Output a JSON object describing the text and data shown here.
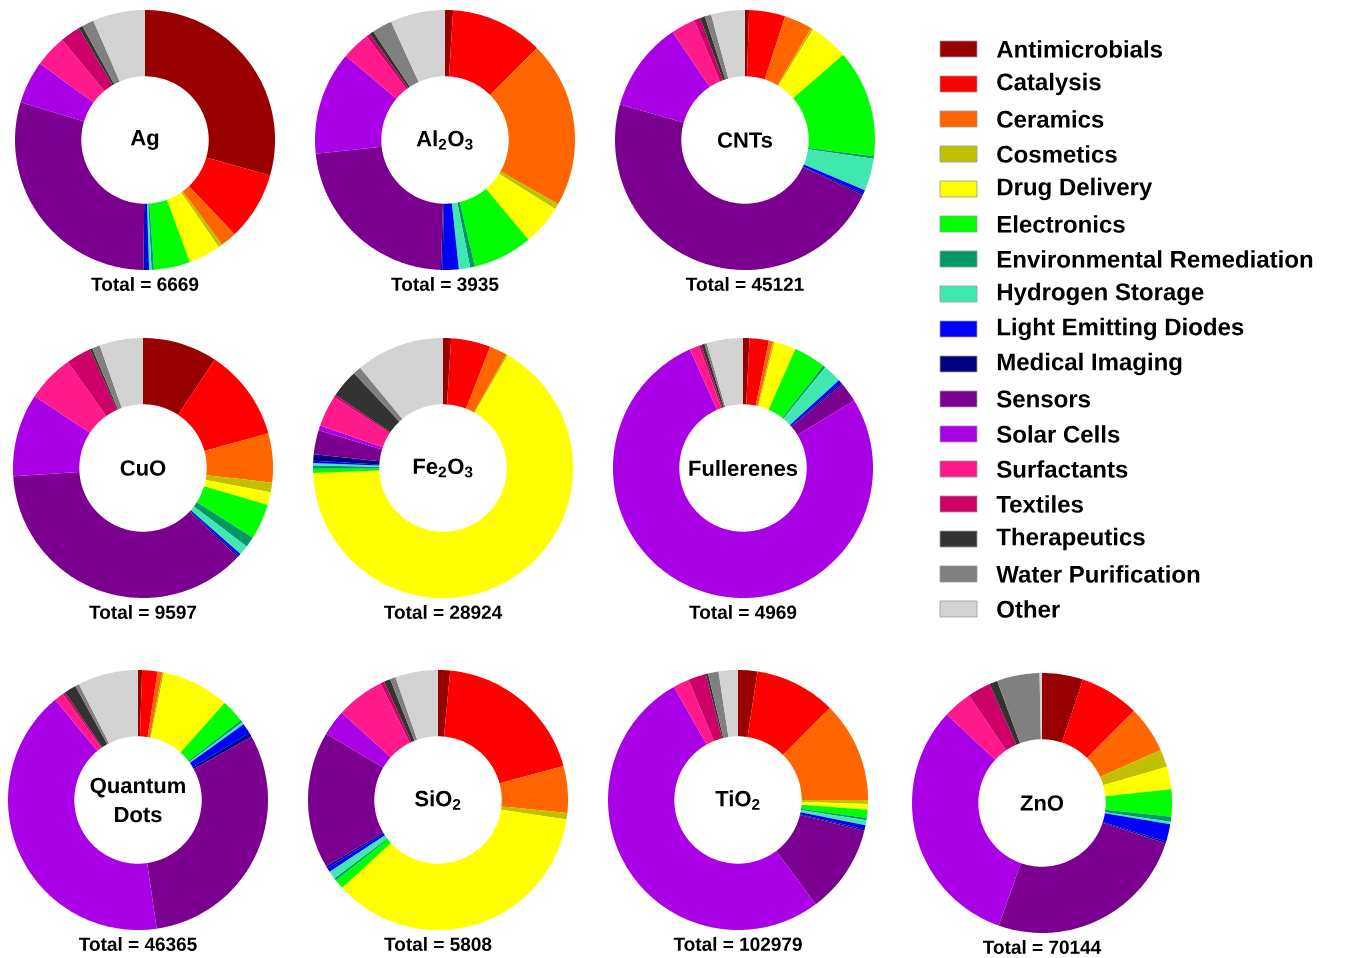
{
  "chart_data": [
    {
      "type": "donut",
      "title": "Ag",
      "annotations": [
        "Total = 6669"
      ],
      "categories": [
        null,
        null,
        null,
        null,
        null,
        null,
        null,
        null,
        null,
        null,
        null,
        null,
        null,
        null,
        null,
        null,
        null
      ],
      "colors": [
        "#990000",
        "#ff0000",
        "#ff6600",
        "#c0c000",
        "#ffff00",
        "#00ff00",
        "#009966",
        "#40e8b0",
        "#0000ff",
        "#000080",
        "#7b0090",
        "#aa00e6",
        "#ff1a8c",
        "#cc0066",
        "#333333",
        "#808080",
        "#d3d3d3"
      ],
      "values": [
        29.4,
        8.5,
        2,
        0.5,
        4,
        4.5,
        0.3,
        0.3,
        0.5,
        0.2,
        29.5,
        5.3,
        4,
        2.5,
        0.5,
        1.5,
        6.5
      ]
    },
    {
      "type": "donut",
      "title": "Al$_{2}$O$_{3}$",
      "annotations": [
        "Total = 3935"
      ],
      "categories": [
        null,
        null,
        null,
        null,
        null,
        null,
        null,
        null,
        null,
        null,
        null,
        null,
        null,
        null,
        null,
        null,
        null
      ],
      "colors": [
        "#990000",
        "#ff0000",
        "#ff6600",
        "#c0c000",
        "#ffff00",
        "#00ff00",
        "#009966",
        "#40e8b0",
        "#0000ff",
        "#000080",
        "#7b0090",
        "#aa00e6",
        "#ff1a8c",
        "#cc0066",
        "#333333",
        "#808080",
        "#d3d3d3"
      ],
      "values": [
        1,
        11.5,
        20.7,
        0.7,
        5,
        7.4,
        0.6,
        1.4,
        2,
        0.2,
        22.8,
        12.9,
        3.5,
        0.5,
        0.5,
        2.5,
        6.8
      ]
    },
    {
      "type": "donut",
      "title": "CNTs",
      "annotations": [
        "Total = 45121"
      ],
      "legend": "right",
      "categories": [
        "Antimicrobials",
        "Catalysis",
        "Ceramics",
        "Cosmetics",
        "Drug Delivery",
        "Electronics",
        "Environmental Remediation",
        "Hydrogen Storage",
        "Light Emitting Diodes",
        "Medical Imaging",
        "Sensors",
        "Solar Cells",
        "Surfactants",
        "Textiles",
        "Therapeutics",
        "Water Purification",
        "Other"
      ],
      "colors": [
        "#990000",
        "#ff0000",
        "#ff6600",
        "#c0c000",
        "#ffff00",
        "#00ff00",
        "#009966",
        "#40e8b0",
        "#0000ff",
        "#000080",
        "#7b0090",
        "#aa00e6",
        "#ff1a8c",
        "#cc0066",
        "#333333",
        "#808080",
        "#d3d3d3"
      ],
      "values": [
        0.5,
        4.5,
        3.5,
        0.3,
        4.8,
        13.4,
        0.3,
        4,
        0.5,
        0.2,
        47.4,
        11.2,
        3,
        0.8,
        0.6,
        0.8,
        4.2
      ]
    },
    {
      "type": "donut",
      "title": "CuO",
      "annotations": [
        "Total = 9597"
      ],
      "categories": [
        null,
        null,
        null,
        null,
        null,
        null,
        null,
        null,
        null,
        null,
        null,
        null,
        null,
        null,
        null,
        null,
        null
      ],
      "colors": [
        "#990000",
        "#ff0000",
        "#ff6600",
        "#c0c000",
        "#ffff00",
        "#00ff00",
        "#009966",
        "#40e8b0",
        "#0000ff",
        "#000080",
        "#7b0090",
        "#aa00e6",
        "#ff1a8c",
        "#cc0066",
        "#333333",
        "#808080",
        "#d3d3d3"
      ],
      "values": [
        9.3,
        11.4,
        6.1,
        1.2,
        1.6,
        4.4,
        1.3,
        1.2,
        0.3,
        0.2,
        37,
        10.3,
        5.9,
        3.1,
        0.3,
        1,
        5.4
      ]
    },
    {
      "type": "donut",
      "title": "Fe$_{2}$O$_{3}$",
      "annotations": [
        "Total = 28924"
      ],
      "categories": [
        null,
        null,
        null,
        null,
        null,
        null,
        null,
        null,
        null,
        null,
        null,
        null,
        null,
        null,
        null,
        null,
        null
      ],
      "colors": [
        "#990000",
        "#ff0000",
        "#ff6600",
        "#c0c000",
        "#ffff00",
        "#00ff00",
        "#009966",
        "#40e8b0",
        "#0000ff",
        "#000080",
        "#7b0090",
        "#aa00e6",
        "#ff1a8c",
        "#cc0066",
        "#333333",
        "#808080",
        "#d3d3d3"
      ],
      "values": [
        1,
        4.9,
        2.2,
        0.2,
        66.1,
        0.5,
        0.4,
        0.3,
        0.3,
        0.8,
        3,
        0.6,
        3.9,
        0.3,
        3.5,
        1,
        11
      ]
    },
    {
      "type": "donut",
      "title": "Fullerenes",
      "annotations": [
        "Total = 4969"
      ],
      "categories": [
        null,
        null,
        null,
        null,
        null,
        null,
        null,
        null,
        null,
        null,
        null,
        null,
        null,
        null,
        null,
        null,
        null
      ],
      "colors": [
        "#990000",
        "#ff0000",
        "#ff6600",
        "#c0c000",
        "#ffff00",
        "#00ff00",
        "#009966",
        "#40e8b0",
        "#0000ff",
        "#000080",
        "#7b0090",
        "#aa00e6",
        "#ff1a8c",
        "#cc0066",
        "#333333",
        "#808080",
        "#d3d3d3"
      ],
      "values": [
        0.8,
        2.4,
        0.5,
        0.2,
        2.7,
        4,
        0.3,
        2.3,
        0.4,
        0.2,
        2.5,
        77,
        1.2,
        0.3,
        0.4,
        0.3,
        4.5
      ]
    },
    {
      "type": "donut",
      "title": "Quantum Dots",
      "annotations": [
        "Total = 46365"
      ],
      "categories": [
        null,
        null,
        null,
        null,
        null,
        null,
        null,
        null,
        null,
        null,
        null,
        null,
        null,
        null,
        null,
        null,
        null
      ],
      "colors": [
        "#990000",
        "#ff0000",
        "#ff6600",
        "#c0c000",
        "#ffff00",
        "#00ff00",
        "#009966",
        "#40e8b0",
        "#0000ff",
        "#000080",
        "#7b0090",
        "#aa00e6",
        "#ff1a8c",
        "#cc0066",
        "#333333",
        "#808080",
        "#d3d3d3"
      ],
      "values": [
        0.5,
        1.9,
        0.6,
        0.2,
        8.4,
        2.9,
        0.3,
        0.3,
        1.3,
        0.5,
        30.8,
        41.3,
        1.2,
        0.3,
        1.5,
        0.5,
        7.5
      ]
    },
    {
      "type": "donut",
      "title": "SiO$_{2}$",
      "annotations": [
        "Total = 5808"
      ],
      "categories": [
        null,
        null,
        null,
        null,
        null,
        null,
        null,
        null,
        null,
        null,
        null,
        null,
        null,
        null,
        null,
        null,
        null
      ],
      "colors": [
        "#990000",
        "#ff0000",
        "#ff6600",
        "#c0c000",
        "#ffff00",
        "#00ff00",
        "#009966",
        "#40e8b0",
        "#0000ff",
        "#000080",
        "#7b0090",
        "#aa00e6",
        "#ff1a8c",
        "#cc0066",
        "#333333",
        "#808080",
        "#d3d3d3"
      ],
      "values": [
        1.5,
        19.3,
        5.8,
        0.8,
        35.8,
        1.2,
        0.3,
        1,
        0.5,
        0.3,
        17,
        3.2,
        6,
        0.5,
        0.8,
        0.7,
        5.3
      ]
    },
    {
      "type": "donut",
      "title": "TiO$_{2}$",
      "annotations": [
        "Total = 102979"
      ],
      "categories": [
        null,
        null,
        null,
        null,
        null,
        null,
        null,
        null,
        null,
        null,
        null,
        null,
        null,
        null,
        null,
        null,
        null
      ],
      "colors": [
        "#990000",
        "#ff0000",
        "#ff6600",
        "#c0c000",
        "#ffff00",
        "#00ff00",
        "#009966",
        "#40e8b0",
        "#0000ff",
        "#000080",
        "#7b0090",
        "#aa00e6",
        "#ff1a8c",
        "#cc0066",
        "#333333",
        "#808080",
        "#d3d3d3"
      ],
      "values": [
        2.4,
        10.1,
        12.5,
        0.5,
        0.7,
        1,
        0.3,
        0.6,
        0.5,
        0.2,
        11,
        52,
        2,
        2.2,
        0.3,
        1.3,
        2.4
      ]
    },
    {
      "type": "donut",
      "title": "ZnO",
      "annotations": [
        "Total = 70144"
      ],
      "categories": [
        null,
        null,
        null,
        null,
        null,
        null,
        null,
        null,
        null,
        null,
        null,
        null,
        null,
        null,
        null,
        null,
        null
      ],
      "colors": [
        "#990000",
        "#ff0000",
        "#ff6600",
        "#c0c000",
        "#ffff00",
        "#00ff00",
        "#009966",
        "#40e8b0",
        "#0000ff",
        "#000080",
        "#7b0090",
        "#aa00e6",
        "#ff1a8c",
        "#cc0066",
        "#333333",
        "#808080",
        "#d3d3d3"
      ],
      "values": [
        5.1,
        7.4,
        5.8,
        2.2,
        2.8,
        3.4,
        0.6,
        0.3,
        2.2,
        0.2,
        25.4,
        31.5,
        3.6,
        2.9,
        1,
        5.3,
        0.3
      ]
    }
  ]
}
